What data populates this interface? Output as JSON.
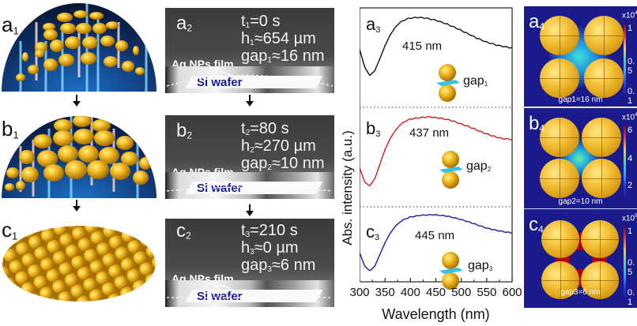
{
  "column1": {
    "panels": [
      {
        "label_main": "a",
        "label_sub": "1"
      },
      {
        "label_main": "b",
        "label_sub": "1"
      },
      {
        "label_main": "c",
        "label_sub": "1"
      }
    ]
  },
  "column2": {
    "panels": [
      {
        "label_main": "a",
        "label_sub": "2",
        "t_var": "t",
        "t_sub": "1",
        "t_val": "=0 s",
        "h_var": "h",
        "h_sub": "1",
        "h_val": "≈654 µm",
        "gap_var": "gap",
        "gap_sub": "1",
        "gap_val": "≈16 nm",
        "film": "Ag NPs film",
        "wafer": "Si wafer"
      },
      {
        "label_main": "b",
        "label_sub": "2",
        "t_var": "t",
        "t_sub": "2",
        "t_val": "=80 s",
        "h_var": "h",
        "h_sub": "2",
        "h_val": "≈270 µm",
        "gap_var": "gap",
        "gap_sub": "2",
        "gap_val": "≈10 nm",
        "film": "Ag NPs film",
        "wafer": "Si wafer"
      },
      {
        "label_main": "c",
        "label_sub": "2",
        "t_var": "t",
        "t_sub": "3",
        "t_val": "=210 s",
        "h_var": "h",
        "h_sub": "3",
        "h_val": "≈0 µm",
        "gap_var": "gap",
        "gap_sub": "3",
        "gap_val": "≈6 nm",
        "film": "Ag NPs film",
        "wafer": "Si wafer"
      }
    ]
  },
  "column4": {
    "panels": [
      {
        "label_main": "a",
        "label_sub": "4",
        "caption": "gap1=16 nm",
        "cb_exp_base": "x10",
        "cb_exp_pow": "4",
        "cb_ticks": [
          "1",
          "0. 5",
          "0. 1"
        ]
      },
      {
        "label_main": "b",
        "label_sub": "4",
        "caption": "gap2=10 nm",
        "cb_exp_base": "x10",
        "cb_exp_pow": "4",
        "cb_ticks": [
          "6",
          "4",
          "2"
        ]
      },
      {
        "label_main": "c",
        "label_sub": "4",
        "caption": "gap3=6 nm",
        "cb_exp_base": "x10",
        "cb_exp_pow": "5",
        "cb_ticks": [
          "1",
          "0. 5",
          "0. 1"
        ]
      }
    ]
  },
  "chart_data": {
    "type": "line",
    "title": "",
    "xlabel": "Wavelength (nm)",
    "ylabel": "Abs. intensity (a.u.)",
    "xlim": [
      300,
      600
    ],
    "xticks": [
      300,
      350,
      400,
      450,
      500,
      550,
      600
    ],
    "xtick_labels": [
      "300",
      "350",
      "400",
      "450",
      "500",
      "550",
      "600"
    ],
    "grid": false,
    "series": [
      {
        "name": "a3",
        "label_main": "a",
        "label_sub": "3",
        "color": "#111111",
        "peak_label": "415 nm",
        "gap_label": "gap",
        "gap_sub": "1",
        "x": [
          300,
          310,
          320,
          330,
          340,
          350,
          360,
          370,
          380,
          390,
          400,
          415,
          430,
          450,
          470,
          490,
          510,
          530,
          550,
          570,
          590,
          600
        ],
        "y": [
          0.55,
          0.3,
          0.18,
          0.25,
          0.42,
          0.6,
          0.75,
          0.86,
          0.93,
          0.97,
          0.99,
          1.0,
          0.99,
          0.96,
          0.91,
          0.85,
          0.78,
          0.71,
          0.65,
          0.61,
          0.58,
          0.57
        ]
      },
      {
        "name": "b3",
        "label_main": "b",
        "label_sub": "3",
        "color": "#d01c1c",
        "peak_label": "437 nm",
        "gap_label": "gap",
        "gap_sub": "2",
        "x": [
          300,
          310,
          320,
          330,
          340,
          350,
          360,
          370,
          380,
          390,
          400,
          420,
          437,
          460,
          480,
          500,
          520,
          540,
          560,
          580,
          600
        ],
        "y": [
          0.3,
          0.1,
          0.05,
          0.15,
          0.35,
          0.55,
          0.7,
          0.81,
          0.89,
          0.94,
          0.97,
          0.99,
          1.0,
          0.98,
          0.95,
          0.9,
          0.85,
          0.79,
          0.74,
          0.7,
          0.69
        ]
      },
      {
        "name": "c3",
        "label_main": "c",
        "label_sub": "3",
        "color": "#1a1aa8",
        "peak_label": "445 nm",
        "gap_label": "gap",
        "gap_sub": "3",
        "x": [
          300,
          310,
          320,
          330,
          340,
          350,
          360,
          370,
          380,
          390,
          400,
          420,
          445,
          470,
          490,
          510,
          530,
          550,
          570,
          590,
          600
        ],
        "y": [
          0.35,
          0.12,
          0.04,
          0.12,
          0.32,
          0.52,
          0.68,
          0.8,
          0.88,
          0.93,
          0.96,
          0.99,
          1.0,
          0.98,
          0.94,
          0.89,
          0.83,
          0.77,
          0.73,
          0.7,
          0.69
        ]
      }
    ]
  }
}
